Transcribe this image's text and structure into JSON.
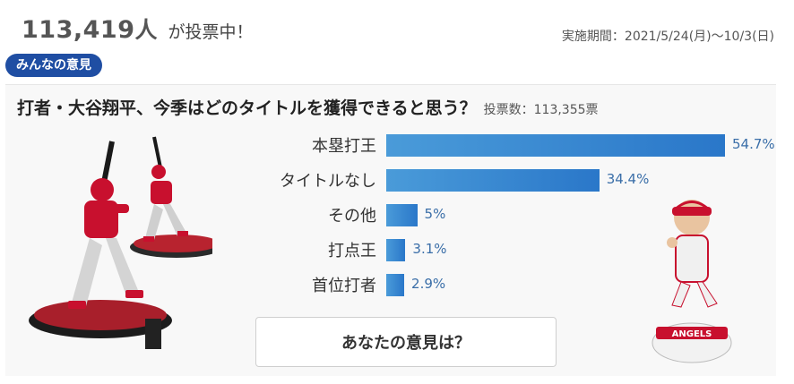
{
  "header": {
    "voter_count": "113,419",
    "voter_unit": "人",
    "voter_suffix": "が投票中！",
    "period": "実施期間：2021/5/24(月)～10/3(日)"
  },
  "badge_label": "みんなの意見",
  "question": {
    "text": "打者・大谷翔平、今季はどのタイトルを獲得できると思う？",
    "total_votes": "投票数：113,355票"
  },
  "chart_data": {
    "type": "bar",
    "categories": [
      "本塁打王",
      "タイトルなし",
      "その他",
      "打点王",
      "首位打者"
    ],
    "values": [
      54.7,
      34.4,
      5,
      3.1,
      2.9
    ],
    "labels": [
      "54.7%",
      "34.4%",
      "5%",
      "3.1%",
      "2.9%"
    ],
    "max": 54.7
  },
  "opinion_button": "あなたの意見は？",
  "colors": {
    "badge": "#1f4ea3",
    "bar": "#2a77c9",
    "angels_red": "#c8102e"
  },
  "images": {
    "figure_left": "batter-figurine",
    "figure_right": "pitcher-bobblehead",
    "bobble_base_text": "ANGELS"
  }
}
